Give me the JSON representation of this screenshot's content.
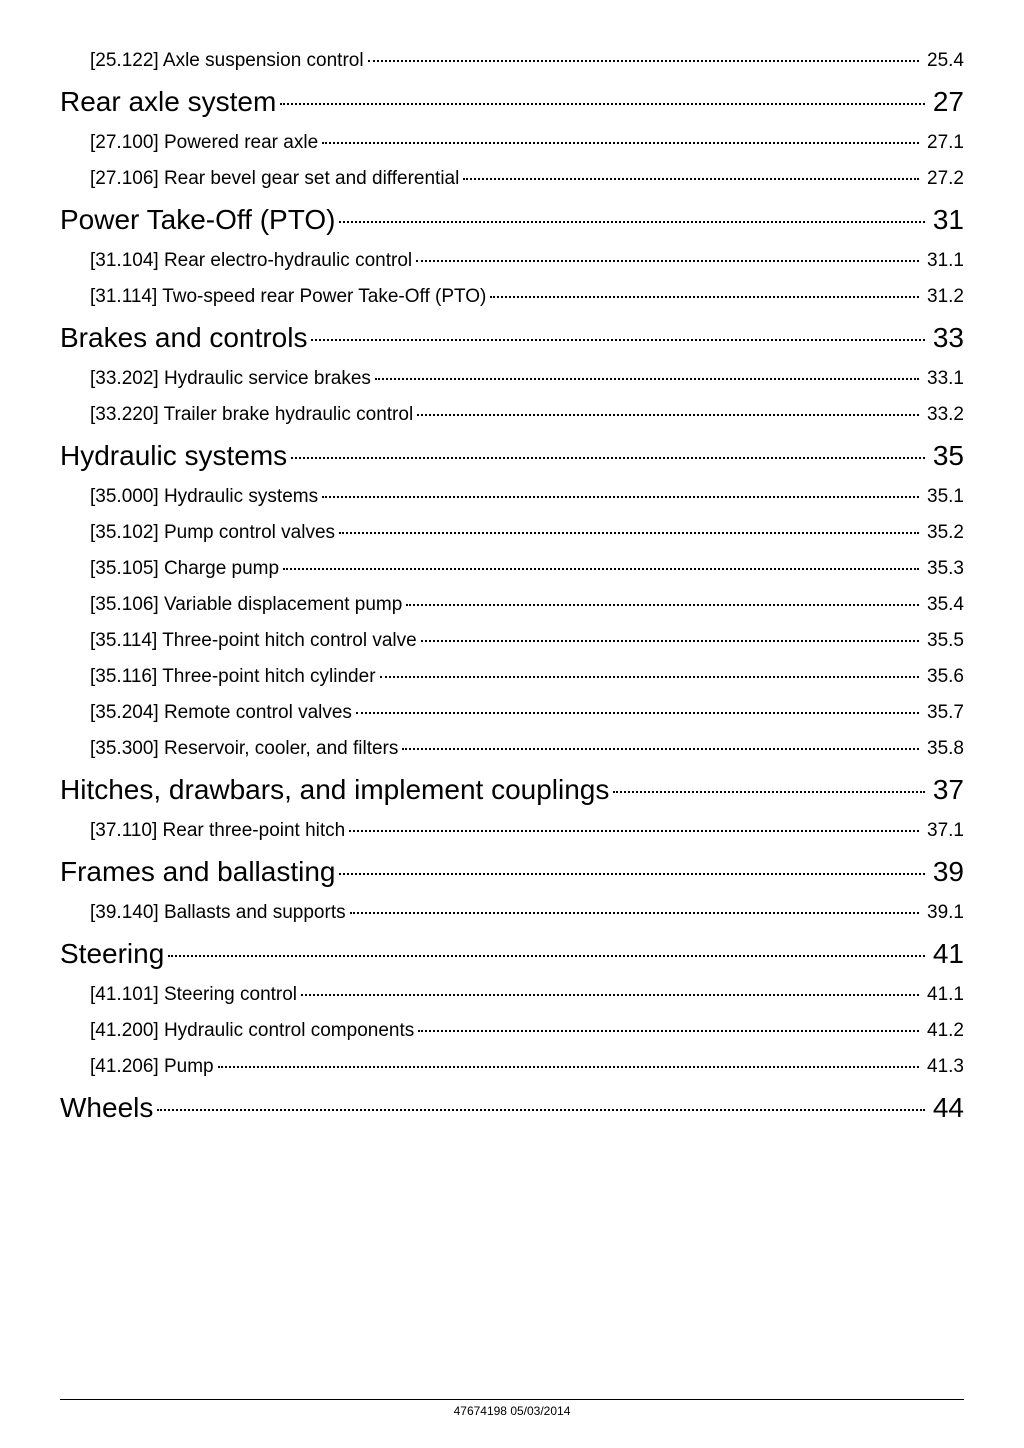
{
  "toc": {
    "entries": [
      {
        "level": "sub",
        "label": "[25.122] Axle suspension control",
        "page": "25.4"
      },
      {
        "level": "section",
        "label": "Rear axle system",
        "page": "27"
      },
      {
        "level": "sub",
        "label": "[27.100] Powered rear axle",
        "page": "27.1"
      },
      {
        "level": "sub",
        "label": "[27.106] Rear bevel gear set and differential",
        "page": "27.2"
      },
      {
        "level": "section",
        "label": "Power Take-Off (PTO)",
        "page": "31"
      },
      {
        "level": "sub",
        "label": "[31.104] Rear electro-hydraulic control",
        "page": "31.1"
      },
      {
        "level": "sub",
        "label": "[31.114] Two-speed rear Power Take-Off (PTO)",
        "page": "31.2"
      },
      {
        "level": "section",
        "label": "Brakes and controls",
        "page": "33"
      },
      {
        "level": "sub",
        "label": "[33.202] Hydraulic service brakes",
        "page": "33.1"
      },
      {
        "level": "sub",
        "label": "[33.220] Trailer brake hydraulic control",
        "page": "33.2"
      },
      {
        "level": "section",
        "label": "Hydraulic systems",
        "page": "35"
      },
      {
        "level": "sub",
        "label": "[35.000] Hydraulic systems",
        "page": "35.1"
      },
      {
        "level": "sub",
        "label": "[35.102] Pump control valves",
        "page": "35.2"
      },
      {
        "level": "sub",
        "label": "[35.105] Charge pump",
        "page": "35.3"
      },
      {
        "level": "sub",
        "label": "[35.106] Variable displacement pump",
        "page": "35.4"
      },
      {
        "level": "sub",
        "label": "[35.114] Three-point hitch control valve",
        "page": "35.5"
      },
      {
        "level": "sub",
        "label": "[35.116] Three-point hitch cylinder",
        "page": "35.6"
      },
      {
        "level": "sub",
        "label": "[35.204] Remote control valves",
        "page": "35.7"
      },
      {
        "level": "sub",
        "label": "[35.300] Reservoir, cooler, and filters",
        "page": "35.8"
      },
      {
        "level": "section",
        "label": "Hitches, drawbars, and implement couplings",
        "page": "37"
      },
      {
        "level": "sub",
        "label": "[37.110] Rear three-point hitch",
        "page": "37.1"
      },
      {
        "level": "section",
        "label": "Frames and ballasting",
        "page": "39"
      },
      {
        "level": "sub",
        "label": "[39.140] Ballasts and supports",
        "page": "39.1"
      },
      {
        "level": "section",
        "label": "Steering",
        "page": "41"
      },
      {
        "level": "sub",
        "label": "[41.101] Steering control",
        "page": "41.1"
      },
      {
        "level": "sub",
        "label": "[41.200] Hydraulic control components",
        "page": "41.2"
      },
      {
        "level": "sub",
        "label": "[41.206] Pump",
        "page": "41.3"
      },
      {
        "level": "section",
        "label": "Wheels",
        "page": "44"
      }
    ]
  },
  "footer": "47674198 05/03/2014"
}
